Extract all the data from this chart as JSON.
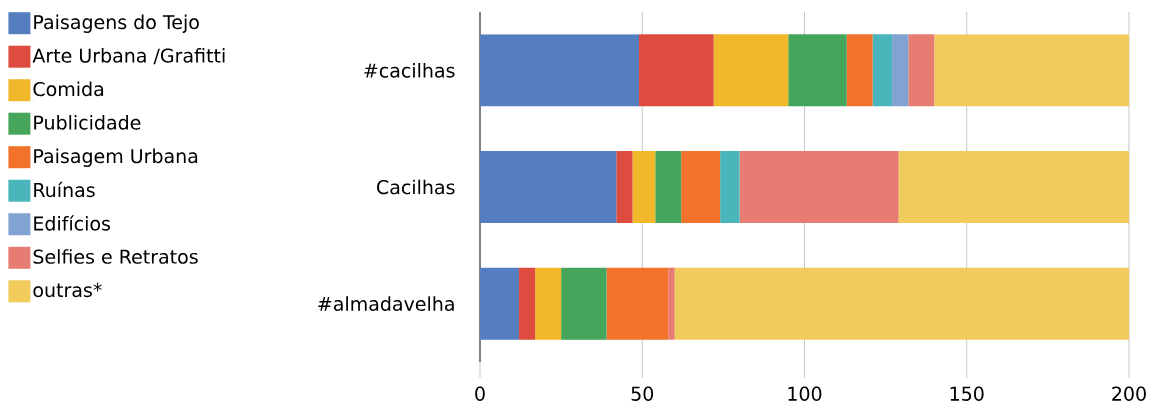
{
  "chart_data": {
    "type": "bar",
    "orientation": "horizontal",
    "stacked": true,
    "categories": [
      "#cacilhas",
      "Cacilhas",
      "#almadavelha"
    ],
    "series": [
      {
        "name": "Paisagens do Tejo",
        "color": "#547ec0",
        "values": [
          49,
          42,
          12
        ]
      },
      {
        "name": "Arte Urbana /Grafitti",
        "color": "#de4c40",
        "values": [
          23,
          5,
          5
        ]
      },
      {
        "name": "Comida",
        "color": "#f1b82c",
        "values": [
          23,
          7,
          8
        ]
      },
      {
        "name": "Publicidade",
        "color": "#44a55b",
        "values": [
          18,
          8,
          14
        ]
      },
      {
        "name": "Paisagem Urbana",
        "color": "#f2712b",
        "values": [
          8,
          12,
          19
        ]
      },
      {
        "name": "Ruínas",
        "color": "#4bb5bc",
        "values": [
          6,
          6,
          0
        ]
      },
      {
        "name": "Edifícios",
        "color": "#80a3d2",
        "values": [
          5,
          0,
          0
        ]
      },
      {
        "name": "Selfies e Retratos",
        "color": "#e77c73",
        "values": [
          8,
          49,
          2
        ]
      },
      {
        "name": "outras*",
        "color": "#f2cb5d",
        "values": [
          60,
          71,
          140
        ]
      }
    ],
    "xlim": [
      0,
      200
    ],
    "xticks": [
      0,
      50,
      100,
      150,
      200
    ],
    "grid": "x",
    "legend": "left"
  }
}
